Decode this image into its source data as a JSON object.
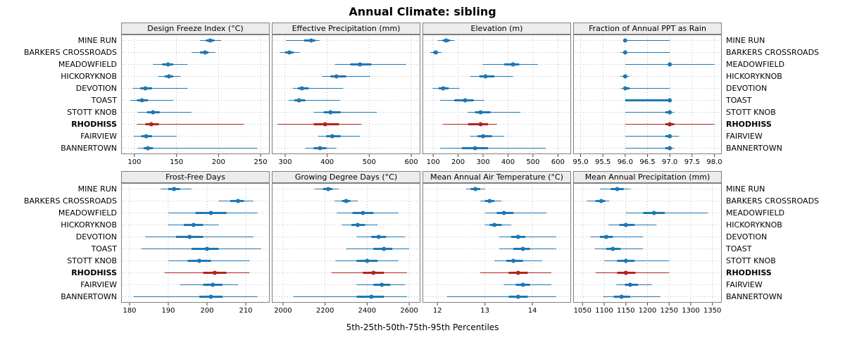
{
  "title": "Annual Climate: sibling",
  "caption": "5th-25th-50th-75th-95th Percentiles",
  "colors": {
    "normal": "#1f77b4",
    "highlight": "#b22222",
    "grid": "#bcbcbc",
    "border": "#808080",
    "strip_bg": "#ececec"
  },
  "highlight_station": "RHODHISS",
  "chart_data": {
    "type": "dotplot-percentiles",
    "percentile_order": [
      5,
      25,
      50,
      75,
      95
    ],
    "stations": [
      "MINE RUN",
      "BARKERS CROSSROADS",
      "MEADOWFIELD",
      "HICKORYKNOB",
      "DEVOTION",
      "TOAST",
      "STOTT KNOB",
      "RHODHISS",
      "FAIRVIEW",
      "BANNERTOWN"
    ],
    "panels": [
      {
        "title": "Design Freeze Index (°C)",
        "row": 1,
        "xlim": [
          85,
          260
        ],
        "ticks": [
          100,
          150,
          200,
          250
        ],
        "tick_labels": [
          "100",
          "150",
          "200",
          "250"
        ],
        "values": [
          [
            178,
            185,
            190,
            195,
            203
          ],
          [
            168,
            178,
            184,
            188,
            196
          ],
          [
            122,
            133,
            140,
            146,
            163
          ],
          [
            128,
            136,
            141,
            146,
            155
          ],
          [
            98,
            107,
            113,
            121,
            163
          ],
          [
            95,
            103,
            109,
            116,
            146
          ],
          [
            104,
            115,
            122,
            130,
            168
          ],
          [
            103,
            113,
            120,
            129,
            230
          ],
          [
            99,
            108,
            114,
            121,
            150
          ],
          [
            104,
            111,
            116,
            122,
            246
          ]
        ]
      },
      {
        "title": "Effective Precipitation (mm)",
        "row": 1,
        "xlim": [
          270,
          620
        ],
        "ticks": [
          300,
          400,
          500,
          600
        ],
        "tick_labels": [
          "300",
          "400",
          "500",
          "600"
        ],
        "values": [
          [
            302,
            345,
            362,
            372,
            382
          ],
          [
            288,
            300,
            310,
            320,
            335
          ],
          [
            418,
            455,
            478,
            505,
            588
          ],
          [
            388,
            408,
            422,
            445,
            502
          ],
          [
            318,
            330,
            340,
            356,
            438
          ],
          [
            308,
            322,
            333,
            348,
            430
          ],
          [
            368,
            392,
            408,
            432,
            518
          ],
          [
            282,
            368,
            395,
            428,
            482
          ],
          [
            378,
            398,
            412,
            432,
            478
          ],
          [
            348,
            368,
            383,
            398,
            422
          ]
        ]
      },
      {
        "title": "Elevation (m)",
        "row": 1,
        "xlim": [
          60,
          650
        ],
        "ticks": [
          100,
          200,
          300,
          400,
          500,
          600
        ],
        "tick_labels": [
          "100",
          "200",
          "300",
          "400",
          "500",
          "600"
        ],
        "values": [
          [
            118,
            138,
            152,
            168,
            185
          ],
          [
            88,
            100,
            110,
            120,
            135
          ],
          [
            298,
            385,
            420,
            445,
            520
          ],
          [
            248,
            285,
            310,
            345,
            420
          ],
          [
            98,
            122,
            140,
            162,
            205
          ],
          [
            128,
            185,
            228,
            262,
            305
          ],
          [
            238,
            268,
            290,
            330,
            450
          ],
          [
            138,
            240,
            290,
            320,
            355
          ],
          [
            248,
            278,
            300,
            335,
            385
          ],
          [
            128,
            215,
            268,
            320,
            552
          ]
        ]
      },
      {
        "title": "Fraction of Annual PPT as Rain",
        "row": 1,
        "xlim": [
          94.85,
          98.15
        ],
        "ticks": [
          95.0,
          95.5,
          96.0,
          96.5,
          97.0,
          97.5,
          98.0
        ],
        "tick_labels": [
          "95.0",
          "95.5",
          "96.0",
          "96.5",
          "97.0",
          "97.5",
          "98.0"
        ],
        "values": [
          [
            96,
            96,
            96,
            96,
            97
          ],
          [
            95.9,
            96,
            96,
            96,
            97
          ],
          [
            96,
            97,
            97,
            97,
            98
          ],
          [
            95.9,
            96,
            96,
            96,
            96.1
          ],
          [
            95.9,
            96,
            96,
            96.1,
            97
          ],
          [
            96,
            96,
            97,
            97,
            97.05
          ],
          [
            96,
            96.9,
            97,
            97,
            97.1
          ],
          [
            96,
            96.9,
            97,
            97.1,
            98
          ],
          [
            96,
            96.9,
            97,
            97,
            97.2
          ],
          [
            96,
            96.9,
            97,
            97,
            97.1
          ]
        ]
      },
      {
        "title": "Frost-Free Days",
        "row": 2,
        "xlim": [
          178,
          216
        ],
        "ticks": [
          180,
          190,
          200,
          210
        ],
        "tick_labels": [
          "180",
          "190",
          "200",
          "210"
        ],
        "values": [
          [
            188,
            190,
            191.5,
            193,
            196
          ],
          [
            203,
            206,
            208,
            209.5,
            212
          ],
          [
            190,
            197,
            201,
            205,
            213
          ],
          [
            190,
            194,
            196.5,
            199,
            203
          ],
          [
            184,
            192,
            195.5,
            199,
            212
          ],
          [
            183,
            196,
            200,
            203,
            214
          ],
          [
            190,
            195,
            198,
            201,
            211
          ],
          [
            189,
            199,
            202,
            205,
            211
          ],
          [
            193,
            199,
            201.5,
            204,
            208
          ],
          [
            181,
            198,
            201,
            204,
            213
          ]
        ]
      },
      {
        "title": "Growing Degree Days (°C)",
        "row": 2,
        "xlim": [
          1950,
          2650
        ],
        "ticks": [
          2000,
          2200,
          2400,
          2600
        ],
        "tick_labels": [
          "2000",
          "2200",
          "2400",
          "2600"
        ],
        "values": [
          [
            2150,
            2190,
            2215,
            2235,
            2265
          ],
          [
            2245,
            2280,
            2300,
            2320,
            2355
          ],
          [
            2255,
            2330,
            2380,
            2430,
            2550
          ],
          [
            2280,
            2325,
            2355,
            2390,
            2450
          ],
          [
            2350,
            2420,
            2455,
            2490,
            2580
          ],
          [
            2300,
            2430,
            2480,
            2520,
            2600
          ],
          [
            2250,
            2350,
            2400,
            2450,
            2550
          ],
          [
            2230,
            2380,
            2430,
            2480,
            2590
          ],
          [
            2350,
            2430,
            2470,
            2510,
            2580
          ],
          [
            2050,
            2350,
            2420,
            2480,
            2590
          ]
        ]
      },
      {
        "title": "Mean Annual Air Temperature (°C)",
        "row": 2,
        "xlim": [
          11.7,
          14.8
        ],
        "ticks": [
          12,
          13,
          14
        ],
        "tick_labels": [
          "12",
          "13",
          "14"
        ],
        "values": [
          [
            12.6,
            12.7,
            12.8,
            12.9,
            13.0
          ],
          [
            12.9,
            13.0,
            13.1,
            13.2,
            13.35
          ],
          [
            13.0,
            13.25,
            13.4,
            13.6,
            14.3
          ],
          [
            13.0,
            13.1,
            13.2,
            13.35,
            13.55
          ],
          [
            13.3,
            13.55,
            13.7,
            13.85,
            14.5
          ],
          [
            13.3,
            13.6,
            13.8,
            13.95,
            14.5
          ],
          [
            13.2,
            13.45,
            13.6,
            13.8,
            14.2
          ],
          [
            12.9,
            13.5,
            13.7,
            13.9,
            14.4
          ],
          [
            13.4,
            13.65,
            13.8,
            13.95,
            14.4
          ],
          [
            12.2,
            13.5,
            13.7,
            13.9,
            14.5
          ]
        ]
      },
      {
        "title": "Mean Annual Precipitation (mm)",
        "row": 2,
        "xlim": [
          1030,
          1370
        ],
        "ticks": [
          1050,
          1100,
          1150,
          1200,
          1250,
          1300,
          1350
        ],
        "tick_labels": [
          "1050",
          "1100",
          "1150",
          "1200",
          "1250",
          "1300",
          "1350"
        ],
        "values": [
          [
            1090,
            1115,
            1130,
            1145,
            1160
          ],
          [
            1060,
            1080,
            1093,
            1102,
            1112
          ],
          [
            1150,
            1190,
            1215,
            1240,
            1340
          ],
          [
            1110,
            1135,
            1150,
            1170,
            1220
          ],
          [
            1068,
            1090,
            1105,
            1120,
            1190
          ],
          [
            1078,
            1105,
            1120,
            1138,
            1190
          ],
          [
            1100,
            1130,
            1150,
            1170,
            1250
          ],
          [
            1080,
            1130,
            1150,
            1172,
            1250
          ],
          [
            1128,
            1148,
            1160,
            1178,
            1210
          ],
          [
            1098,
            1122,
            1140,
            1160,
            1230
          ]
        ]
      }
    ]
  }
}
